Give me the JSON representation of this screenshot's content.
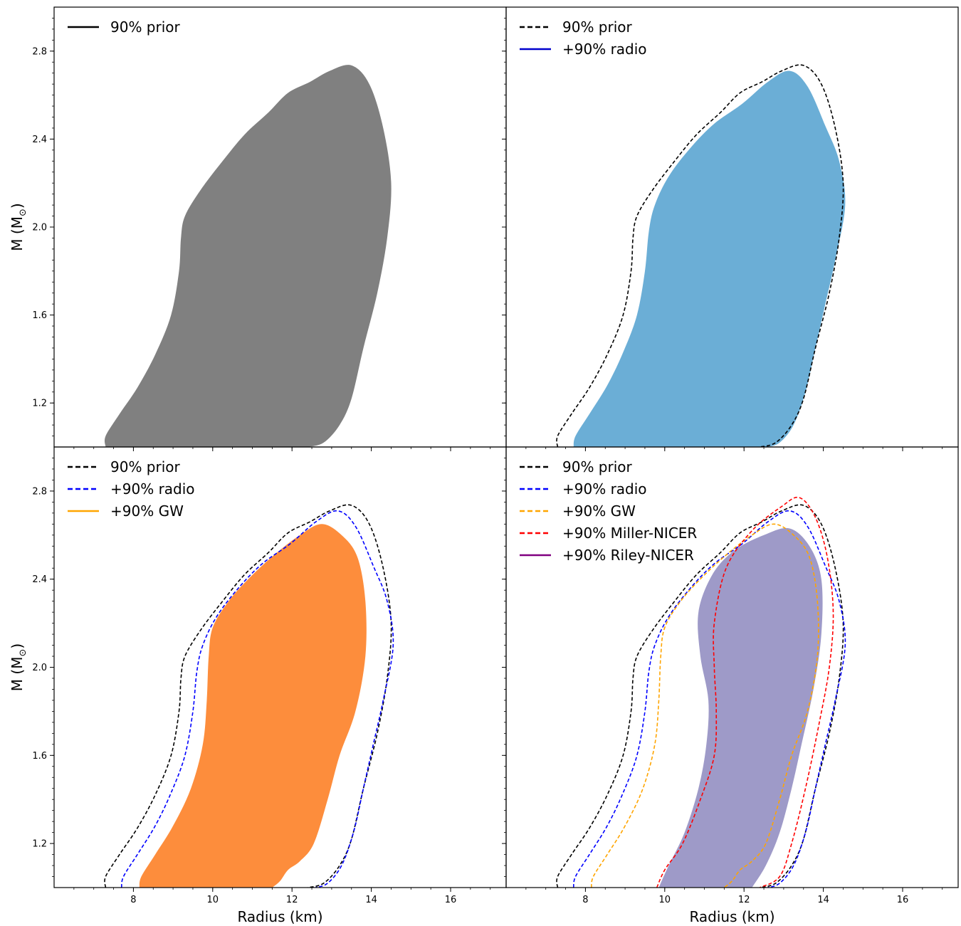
{
  "chart_data": {
    "type": "area",
    "layout": "2x2 panels, shared axes",
    "xlabel": "Radius (km)",
    "ylabel": "M (M",
    "ylabel_sub": "⊙",
    "ylabel_close": ")",
    "xlim": [
      6.0,
      17.4
    ],
    "ylim": [
      1.0,
      3.0
    ],
    "xticks": [
      8,
      10,
      12,
      14,
      16
    ],
    "xtick_labels": [
      "8",
      "10",
      "12",
      "14",
      "16"
    ],
    "yticks": [
      1.2,
      1.6,
      2.0,
      2.4,
      2.8
    ],
    "ytick_labels": [
      "1.2",
      "1.6",
      "2.0",
      "2.4",
      "2.8"
    ],
    "colors": {
      "prior_fill": "#808080",
      "radio_fill": "#6baed6",
      "gw_fill": "#fd8d3c",
      "nicer_fill": "#9e9ac8",
      "prior": "#000000",
      "radio": "#0000ff",
      "gw": "#ffa500",
      "miller": "#ff0000",
      "riley": "#800080"
    },
    "contours": {
      "prior": [
        [
          7.3,
          1.0
        ],
        [
          7.3,
          1.05
        ],
        [
          7.65,
          1.15
        ],
        [
          8.1,
          1.27
        ],
        [
          8.55,
          1.42
        ],
        [
          8.95,
          1.6
        ],
        [
          9.15,
          1.8
        ],
        [
          9.2,
          1.95
        ],
        [
          9.3,
          2.05
        ],
        [
          9.7,
          2.17
        ],
        [
          10.25,
          2.3
        ],
        [
          10.8,
          2.42
        ],
        [
          11.4,
          2.52
        ],
        [
          11.9,
          2.61
        ],
        [
          12.45,
          2.66
        ],
        [
          12.95,
          2.71
        ],
        [
          13.5,
          2.735
        ],
        [
          13.95,
          2.65
        ],
        [
          14.3,
          2.45
        ],
        [
          14.5,
          2.2
        ],
        [
          14.4,
          1.95
        ],
        [
          14.15,
          1.7
        ],
        [
          13.8,
          1.45
        ],
        [
          13.5,
          1.22
        ],
        [
          13.2,
          1.1
        ],
        [
          12.8,
          1.02
        ],
        [
          12.4,
          1.0
        ]
      ],
      "radio": [
        [
          7.7,
          1.0
        ],
        [
          7.75,
          1.05
        ],
        [
          8.1,
          1.15
        ],
        [
          8.55,
          1.28
        ],
        [
          8.95,
          1.43
        ],
        [
          9.3,
          1.6
        ],
        [
          9.5,
          1.8
        ],
        [
          9.6,
          1.98
        ],
        [
          9.75,
          2.1
        ],
        [
          10.1,
          2.23
        ],
        [
          10.65,
          2.36
        ],
        [
          11.25,
          2.47
        ],
        [
          11.95,
          2.56
        ],
        [
          12.6,
          2.66
        ],
        [
          13.15,
          2.71
        ],
        [
          13.6,
          2.64
        ],
        [
          14.05,
          2.46
        ],
        [
          14.4,
          2.3
        ],
        [
          14.55,
          2.1
        ],
        [
          14.3,
          1.85
        ],
        [
          14.05,
          1.65
        ],
        [
          13.8,
          1.45
        ],
        [
          13.55,
          1.25
        ],
        [
          13.25,
          1.1
        ],
        [
          12.9,
          1.02
        ],
        [
          12.6,
          1.0
        ]
      ],
      "gw": [
        [
          8.15,
          1.0
        ],
        [
          8.2,
          1.05
        ],
        [
          8.55,
          1.15
        ],
        [
          9.0,
          1.28
        ],
        [
          9.45,
          1.45
        ],
        [
          9.75,
          1.65
        ],
        [
          9.85,
          1.85
        ],
        [
          9.9,
          2.05
        ],
        [
          10.0,
          2.18
        ],
        [
          10.4,
          2.3
        ],
        [
          10.95,
          2.41
        ],
        [
          11.55,
          2.51
        ],
        [
          12.2,
          2.6
        ],
        [
          12.75,
          2.65
        ],
        [
          13.25,
          2.6
        ],
        [
          13.65,
          2.5
        ],
        [
          13.85,
          2.3
        ],
        [
          13.85,
          2.05
        ],
        [
          13.6,
          1.8
        ],
        [
          13.2,
          1.6
        ],
        [
          12.9,
          1.4
        ],
        [
          12.55,
          1.2
        ],
        [
          12.2,
          1.12
        ],
        [
          11.9,
          1.08
        ],
        [
          11.7,
          1.03
        ],
        [
          11.5,
          1.0
        ]
      ],
      "miller": [
        [
          9.8,
          1.0
        ],
        [
          10.0,
          1.08
        ],
        [
          10.45,
          1.2
        ],
        [
          10.9,
          1.4
        ],
        [
          11.25,
          1.6
        ],
        [
          11.3,
          1.8
        ],
        [
          11.25,
          2.0
        ],
        [
          11.25,
          2.2
        ],
        [
          11.55,
          2.45
        ],
        [
          12.2,
          2.62
        ],
        [
          12.95,
          2.73
        ],
        [
          13.4,
          2.77
        ],
        [
          13.8,
          2.68
        ],
        [
          14.1,
          2.5
        ],
        [
          14.25,
          2.25
        ],
        [
          14.15,
          2.0
        ],
        [
          13.9,
          1.75
        ],
        [
          13.55,
          1.45
        ],
        [
          13.2,
          1.2
        ],
        [
          12.9,
          1.05
        ],
        [
          12.4,
          1.0
        ]
      ],
      "riley": [
        [
          9.85,
          1.0
        ],
        [
          10.1,
          1.1
        ],
        [
          10.5,
          1.25
        ],
        [
          10.85,
          1.45
        ],
        [
          11.05,
          1.65
        ],
        [
          11.1,
          1.85
        ],
        [
          10.9,
          2.05
        ],
        [
          10.85,
          2.25
        ],
        [
          11.2,
          2.42
        ],
        [
          11.75,
          2.53
        ],
        [
          12.5,
          2.6
        ],
        [
          13.15,
          2.63
        ],
        [
          13.65,
          2.55
        ],
        [
          13.95,
          2.4
        ],
        [
          13.95,
          2.15
        ],
        [
          13.75,
          1.9
        ],
        [
          13.45,
          1.65
        ],
        [
          13.2,
          1.45
        ],
        [
          12.9,
          1.25
        ],
        [
          12.55,
          1.1
        ],
        [
          12.2,
          1.0
        ]
      ]
    },
    "panels": [
      {
        "fill_series": "prior",
        "dashed_series": [],
        "legend": [
          {
            "label": "90% prior",
            "color": "#000000",
            "style": "solid"
          }
        ]
      },
      {
        "fill_series": "radio",
        "dashed_series": [
          "prior"
        ],
        "legend": [
          {
            "label": "90% prior",
            "color": "#000000",
            "style": "dashed"
          },
          {
            "label": "+90% radio",
            "color": "#0000cd",
            "style": "solid"
          }
        ]
      },
      {
        "fill_series": "gw",
        "dashed_series": [
          "prior",
          "radio"
        ],
        "legend": [
          {
            "label": "90% prior",
            "color": "#000000",
            "style": "dashed"
          },
          {
            "label": "+90% radio",
            "color": "#0000ff",
            "style": "dashed"
          },
          {
            "label": "+90% GW",
            "color": "#ffa500",
            "style": "solid"
          }
        ]
      },
      {
        "fill_series": "riley",
        "dashed_series": [
          "prior",
          "radio",
          "gw",
          "miller"
        ],
        "legend": [
          {
            "label": "90% prior",
            "color": "#000000",
            "style": "dashed"
          },
          {
            "label": "+90% radio",
            "color": "#0000ff",
            "style": "dashed"
          },
          {
            "label": "+90% GW",
            "color": "#ffa500",
            "style": "dashed"
          },
          {
            "label": "+90% Miller-NICER",
            "color": "#ff0000",
            "style": "dashed"
          },
          {
            "label": "+90% Riley-NICER",
            "color": "#800080",
            "style": "solid"
          }
        ]
      }
    ]
  }
}
